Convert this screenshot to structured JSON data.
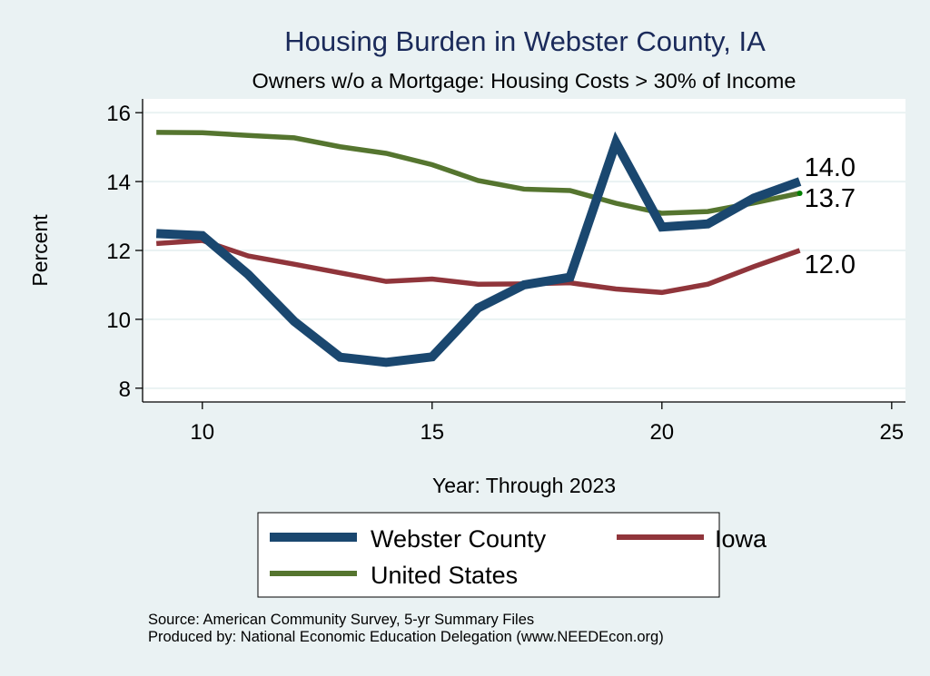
{
  "chart_data": {
    "type": "line",
    "title": "Housing Burden in Webster County, IA",
    "subtitle": "Owners w/o a Mortgage: Housing Costs > 30% of Income",
    "xlabel": "Year: Through 2023",
    "ylabel": "Percent",
    "x": [
      9,
      10,
      11,
      12,
      13,
      14,
      15,
      16,
      17,
      18,
      19,
      20,
      21,
      22,
      23
    ],
    "xlim": [
      8.7,
      25.3
    ],
    "ylim": [
      7.6,
      16.4
    ],
    "xticks": [
      10,
      15,
      20,
      25
    ],
    "yticks": [
      8,
      10,
      12,
      14,
      16
    ],
    "xtick_labels": [
      "10",
      "15",
      "20",
      "25"
    ],
    "ytick_labels": [
      "8",
      "10",
      "12",
      "14",
      "16"
    ],
    "grid": "horizontal",
    "series": [
      {
        "name": "Webster County",
        "color": "#1a476f",
        "values": [
          12.49,
          12.43,
          11.3,
          9.94,
          8.9,
          8.75,
          8.91,
          10.33,
          11.0,
          11.22,
          15.13,
          12.68,
          12.77,
          13.52,
          14.0
        ],
        "end_label": "14.0"
      },
      {
        "name": "Iowa",
        "color": "#90353b",
        "values": [
          12.2,
          12.29,
          11.84,
          11.6,
          11.35,
          11.1,
          11.17,
          11.02,
          11.03,
          11.06,
          10.88,
          10.78,
          11.02,
          11.53,
          12.0
        ],
        "end_label": "12.0"
      },
      {
        "name": "United States",
        "color": "#55752f",
        "values": [
          15.43,
          15.42,
          15.34,
          15.27,
          15.01,
          14.82,
          14.49,
          14.03,
          13.78,
          13.74,
          13.37,
          13.08,
          13.13,
          13.38,
          13.66
        ],
        "end_label": "13.7"
      }
    ],
    "legend": {
      "placement": "bottom",
      "entries": [
        "Webster County",
        "Iowa",
        "United States"
      ]
    },
    "notes": [
      "Source: American Community Survey, 5-yr Summary Files",
      "Produced by: National Economic Education Delegation (www.NEEDEcon.org)"
    ]
  }
}
